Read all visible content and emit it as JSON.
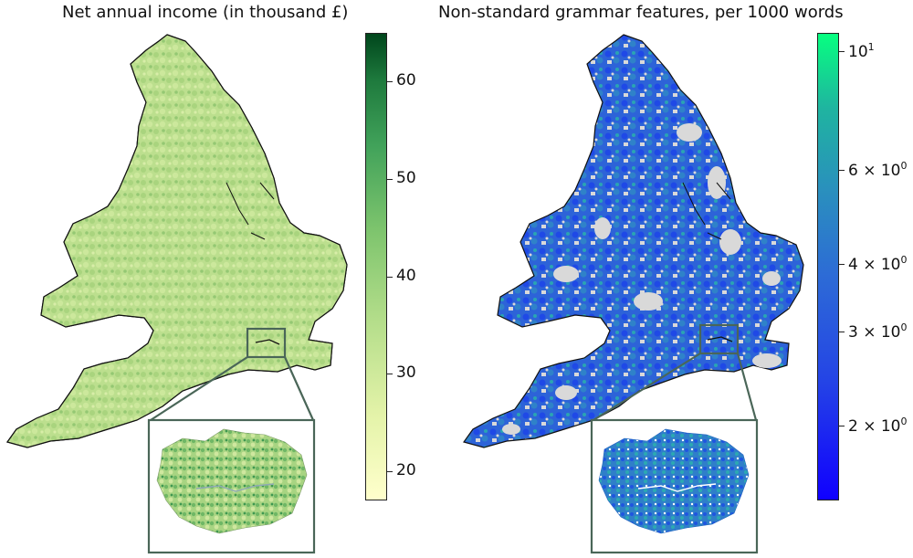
{
  "left_panel": {
    "title": "Net annual income (in thousand £)",
    "colorbar": {
      "ticks": [
        "60",
        "50",
        "40",
        "30",
        "20"
      ],
      "tick_values": [
        60,
        50,
        40,
        30,
        20
      ],
      "range": [
        17,
        65
      ],
      "colors": [
        "#ffffcc",
        "#b5de8b",
        "#41a25a",
        "#00461c"
      ]
    }
  },
  "right_panel": {
    "title": "Non-standard grammar features, per 1000 words",
    "colorbar": {
      "ticks": [
        {
          "mant": "10",
          "exp": "1",
          "value": 10
        },
        {
          "mant": "6 × 10",
          "exp": "0",
          "value": 6
        },
        {
          "mant": "4 × 10",
          "exp": "0",
          "value": 4
        },
        {
          "mant": "3 × 10",
          "exp": "0",
          "value": 3
        },
        {
          "mant": "2 × 10",
          "exp": "0",
          "value": 2
        }
      ],
      "scale": "log",
      "range": [
        1.45,
        10.8
      ],
      "colors": [
        "#1000ff",
        "#2d6bd6",
        "#1fb4a0",
        "#07ff80"
      ],
      "no_data_color": "#d9d9d9"
    }
  }
}
